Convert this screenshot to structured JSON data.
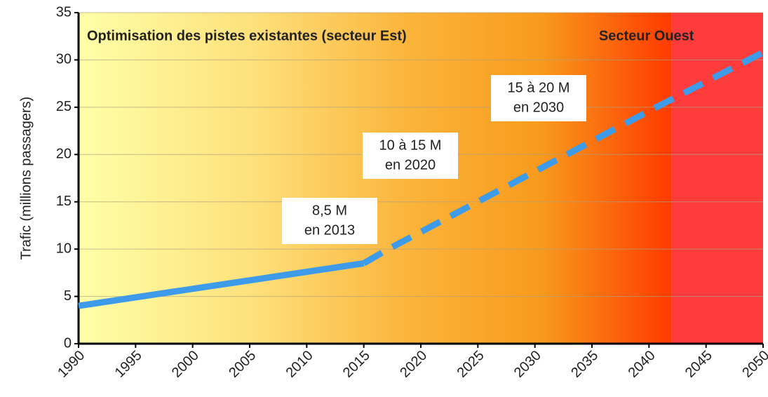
{
  "chart_data": {
    "type": "line",
    "y_label": "Trafic (millions passagers)",
    "xlim": [
      1990,
      2050
    ],
    "xticks": [
      1990,
      1995,
      2000,
      2005,
      2010,
      2015,
      2020,
      2025,
      2030,
      2035,
      2040,
      2045,
      2050
    ],
    "ylim": [
      0,
      35
    ],
    "yticks": [
      0,
      5,
      10,
      15,
      20,
      25,
      30,
      35
    ],
    "grid": true,
    "series": [
      {
        "color": "#3d9be9",
        "dashed": false,
        "x": [
          1990,
          2015
        ],
        "values": [
          4,
          8.5
        ]
      },
      {
        "color": "#3d9be9",
        "dashed": true,
        "x": [
          2015,
          2017,
          2040,
          2050
        ],
        "values": [
          8.5,
          9.9,
          24.6,
          30.8
        ]
      }
    ],
    "regions": [
      {
        "label": "Optimisation des pistes existantes (secteur Est)",
        "x": [
          1990,
          2042
        ],
        "color": null
      },
      {
        "label": "Secteur Ouest",
        "x": [
          2042,
          2050
        ],
        "color": "#ff3c3c"
      }
    ],
    "annotations": [
      [
        "8,5 M",
        "en 2013"
      ],
      [
        "10 à 15 M",
        "en 2020"
      ],
      [
        "15 à 20 M",
        "en 2030"
      ]
    ]
  }
}
